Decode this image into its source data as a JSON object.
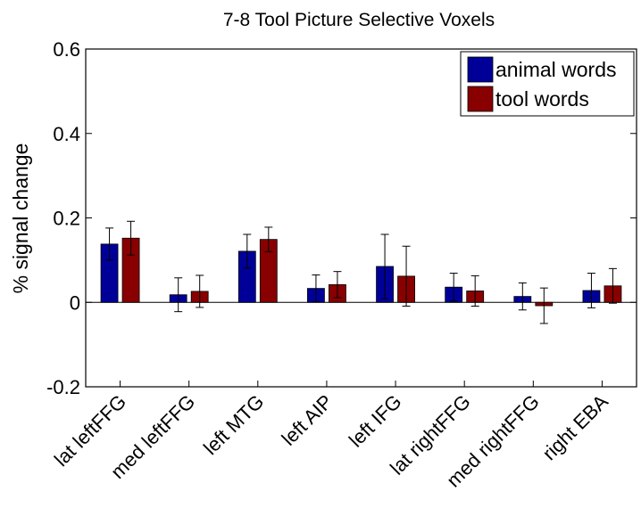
{
  "chart_data": {
    "type": "bar",
    "title": "7-8 Tool Picture Selective Voxels",
    "xlabel": "",
    "ylabel": "% signal change",
    "ylim": [
      -0.2,
      0.6
    ],
    "yticks": [
      -0.2,
      0,
      0.2,
      0.4,
      0.6
    ],
    "ytick_labels": [
      "-0.2",
      "0",
      "0.2",
      "0.4",
      "0.6"
    ],
    "grid": false,
    "legend_position": "top-right",
    "categories": [
      "lat leftFFG",
      "med leftFFG",
      "left MTG",
      "left AIP",
      "left IFG",
      "lat rightFFG",
      "med rightFFG",
      "right EBA"
    ],
    "series": [
      {
        "name": "animal words",
        "color": "#000099",
        "values": [
          0.138,
          0.018,
          0.121,
          0.033,
          0.085,
          0.036,
          0.014,
          0.028
        ],
        "error": [
          0.038,
          0.04,
          0.04,
          0.032,
          0.076,
          0.033,
          0.032,
          0.041
        ]
      },
      {
        "name": "tool words",
        "color": "#880000",
        "values": [
          0.152,
          0.026,
          0.149,
          0.042,
          0.062,
          0.027,
          -0.008,
          0.039
        ],
        "error": [
          0.04,
          0.038,
          0.029,
          0.031,
          0.071,
          0.036,
          0.042,
          0.041
        ]
      }
    ]
  }
}
